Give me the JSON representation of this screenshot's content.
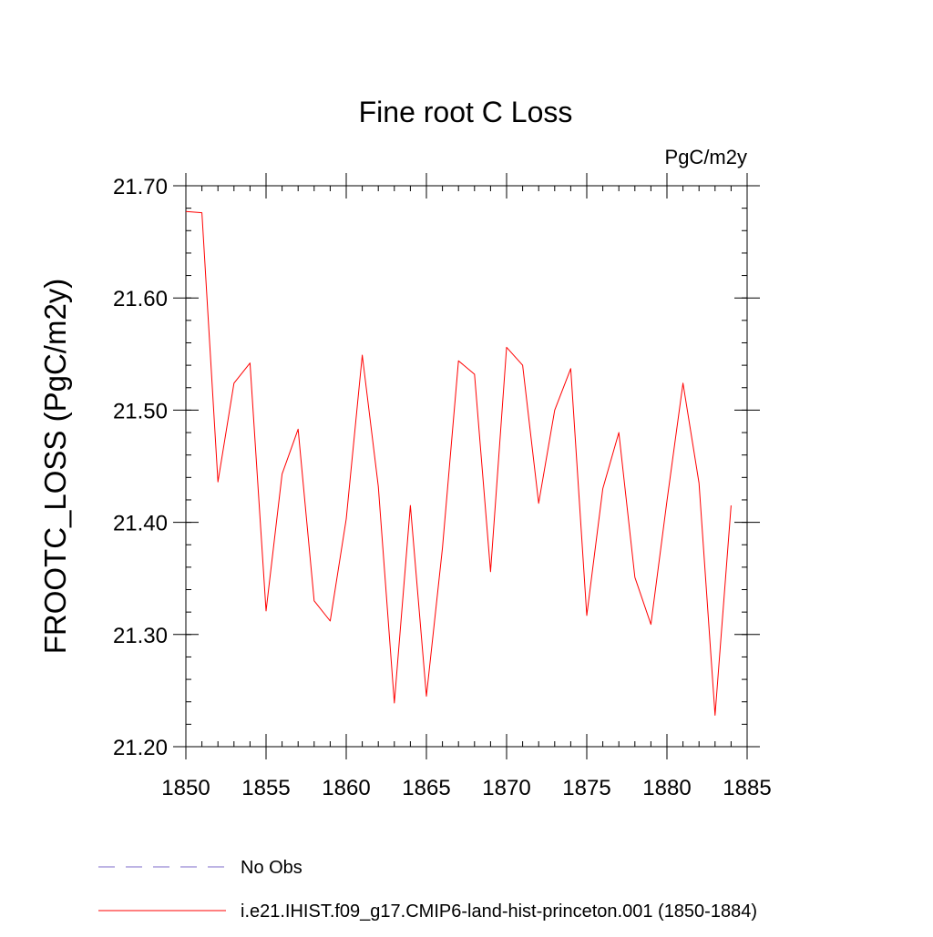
{
  "chart_data": {
    "type": "line",
    "title": "Fine root C Loss",
    "units": "PgC/m2y",
    "ylabel": "FROOTC_LOSS  (PgC/m2y)",
    "xlabel": "",
    "xlim": [
      1850,
      1885
    ],
    "ylim": [
      21.2,
      21.7
    ],
    "x_ticks": [
      1850,
      1855,
      1860,
      1865,
      1870,
      1875,
      1880,
      1885
    ],
    "x_tick_labels": [
      "1850",
      "1855",
      "1860",
      "1865",
      "1870",
      "1875",
      "1880",
      "1885"
    ],
    "y_ticks": [
      21.2,
      21.3,
      21.4,
      21.5,
      21.6,
      21.7
    ],
    "y_tick_labels": [
      "21.20",
      "21.30",
      "21.40",
      "21.50",
      "21.60",
      "21.70"
    ],
    "grid": false,
    "legend_position": "bottom",
    "series": [
      {
        "name": "i.e21.IHIST.f09_g17.CMIP6-land-hist-princeton.001 (1850-1884)",
        "color": "#ff0000",
        "style": "solid",
        "x": [
          1850,
          1851,
          1852,
          1853,
          1854,
          1855,
          1856,
          1857,
          1858,
          1859,
          1860,
          1861,
          1862,
          1863,
          1864,
          1865,
          1866,
          1867,
          1868,
          1869,
          1870,
          1871,
          1872,
          1873,
          1874,
          1875,
          1876,
          1877,
          1878,
          1879,
          1880,
          1881,
          1882,
          1883,
          1884
        ],
        "values": [
          21.677,
          21.676,
          21.436,
          21.524,
          21.542,
          21.321,
          21.443,
          21.483,
          21.33,
          21.312,
          21.403,
          21.549,
          21.432,
          21.239,
          21.415,
          21.245,
          21.377,
          21.544,
          21.532,
          21.356,
          21.556,
          21.54,
          21.417,
          21.5,
          21.537,
          21.317,
          21.43,
          21.48,
          21.351,
          21.309,
          21.419,
          21.524,
          21.435,
          21.228,
          21.415
        ]
      }
    ],
    "legend": [
      {
        "label": "No Obs",
        "color": "#7b68c8",
        "style": "dashed"
      },
      {
        "label": "i.e21.IHIST.f09_g17.CMIP6-land-hist-princeton.001 (1850-1884)",
        "color": "#ff0000",
        "style": "solid"
      }
    ]
  }
}
